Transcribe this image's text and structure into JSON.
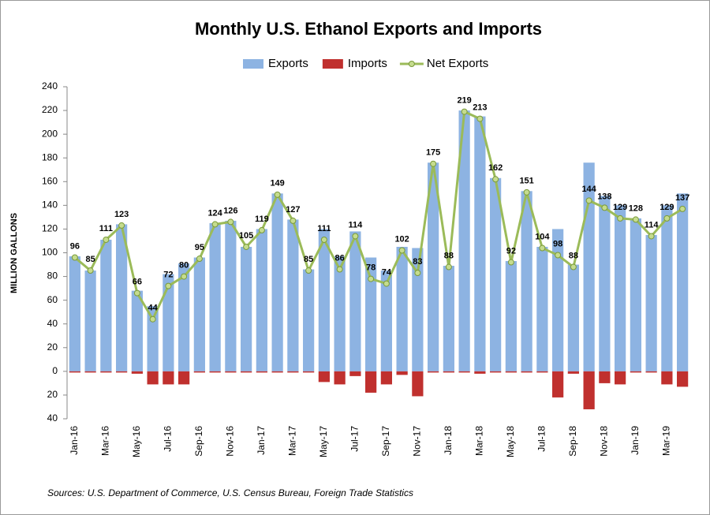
{
  "chart_data": {
    "type": "bar-line",
    "title": "Monthly U.S. Ethanol Exports and Imports",
    "y_label": "MILLION GALLONS",
    "source": "Sources: U.S. Department of Commerce, U.S. Census Bureau, Foreign Trade Statistics",
    "categories": [
      "Jan-16",
      null,
      "Mar-16",
      null,
      "May-16",
      null,
      "Jul-16",
      null,
      "Sep-16",
      null,
      "Nov-16",
      null,
      "Jan-17",
      null,
      "Mar-17",
      null,
      "May-17",
      null,
      "Jul-17",
      null,
      "Sep-17",
      null,
      "Nov-17",
      null,
      "Jan-18",
      null,
      "Mar-18",
      null,
      "May-18",
      null,
      "Jul-18",
      null,
      "Sep-18",
      null,
      "Nov-18",
      null,
      "Jan-19",
      null,
      "Mar-19",
      null
    ],
    "series": [
      {
        "name": "Exports",
        "color": "#8db3e2",
        "kind": "bar",
        "values": [
          97,
          85,
          111,
          124,
          68,
          55,
          82,
          91,
          96,
          125,
          127,
          105,
          120,
          150,
          128,
          86,
          120,
          97,
          118,
          96,
          85,
          105,
          104,
          176,
          89,
          220,
          215,
          163,
          93,
          152,
          105,
          120,
          90,
          176,
          148,
          140,
          129,
          115,
          140,
          150
        ]
      },
      {
        "name": "Imports",
        "color": "#c0302e",
        "kind": "bar",
        "values": [
          -1,
          -1,
          -1,
          -1,
          -2,
          -11,
          -11,
          -11,
          -1,
          -1,
          -1,
          -1,
          -1,
          -1,
          -1,
          -1,
          -9,
          -11,
          -4,
          -18,
          -11,
          -3,
          -21,
          -1,
          -1,
          -1,
          -2,
          -1,
          -1,
          -1,
          -1,
          -22,
          -2,
          -32,
          -10,
          -11,
          -1,
          -1,
          -11,
          -13
        ]
      },
      {
        "name": "Net Exports",
        "color": "#9bbb59",
        "kind": "line",
        "values": [
          96,
          85,
          111,
          123,
          66,
          44,
          72,
          80,
          95,
          124,
          126,
          105,
          119,
          149,
          127,
          85,
          111,
          86,
          114,
          78,
          74,
          102,
          83,
          175,
          88,
          219,
          213,
          162,
          92,
          151,
          104,
          98,
          88,
          144,
          138,
          129,
          128,
          114,
          129,
          137
        ]
      }
    ],
    "ylim": [
      -40,
      240
    ],
    "yticks": [
      {
        "value": -40,
        "label": "40"
      },
      {
        "value": -20,
        "label": "20"
      },
      0,
      20,
      40,
      60,
      80,
      100,
      120,
      140,
      160,
      180,
      200,
      220,
      240
    ],
    "grid": false,
    "legend": "top"
  }
}
